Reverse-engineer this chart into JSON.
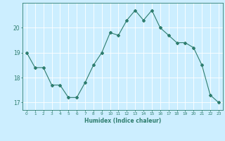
{
  "x": [
    0,
    1,
    2,
    3,
    4,
    5,
    6,
    7,
    8,
    9,
    10,
    11,
    12,
    13,
    14,
    15,
    16,
    17,
    18,
    19,
    20,
    21,
    22,
    23
  ],
  "y": [
    19.0,
    18.4,
    18.4,
    17.7,
    17.7,
    17.2,
    17.2,
    17.8,
    18.5,
    19.0,
    19.8,
    19.7,
    20.3,
    20.7,
    20.3,
    20.7,
    20.0,
    19.7,
    19.4,
    19.4,
    19.2,
    18.5,
    17.3,
    17.0
  ],
  "line_color": "#2e7d6e",
  "marker": "D",
  "marker_size": 2,
  "bg_color": "#cceeff",
  "grid_color": "#ffffff",
  "axis_color": "#2e7d6e",
  "xlabel": "Humidex (Indice chaleur)",
  "yticks": [
    17,
    18,
    19,
    20
  ],
  "xticks": [
    0,
    1,
    2,
    3,
    4,
    5,
    6,
    7,
    8,
    9,
    10,
    11,
    12,
    13,
    14,
    15,
    16,
    17,
    18,
    19,
    20,
    21,
    22,
    23
  ],
  "xlim": [
    -0.5,
    23.5
  ],
  "ylim": [
    16.7,
    21.0
  ]
}
